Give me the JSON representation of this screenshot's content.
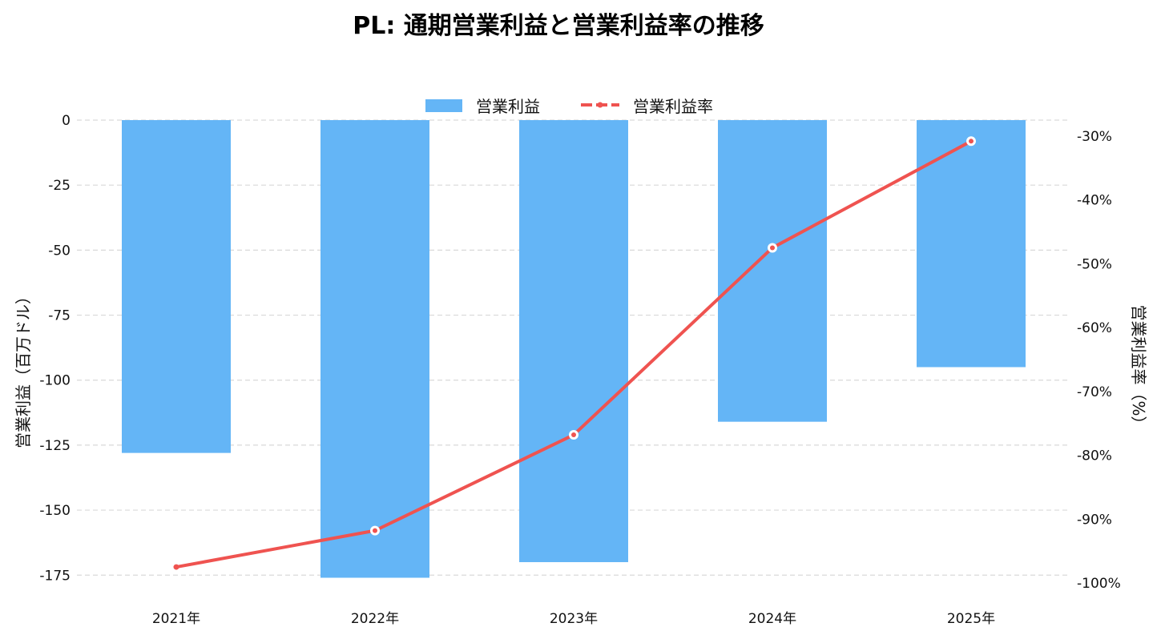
{
  "chart_data": {
    "type": "bar",
    "title": "PL: 通期営業利益と営業利益率の推移",
    "categories": [
      "2021年",
      "2022年",
      "2023年",
      "2024年",
      "2025年"
    ],
    "series": [
      {
        "name": "営業利益",
        "type": "bar",
        "axis": "left",
        "color": "#64b5f6",
        "values": [
          -128,
          -176,
          -170,
          -116,
          -95
        ]
      },
      {
        "name": "営業利益率",
        "type": "line",
        "axis": "right",
        "color": "#ef5350",
        "values": [
          -97.5,
          -91.8,
          -76.8,
          -47.5,
          -30.8
        ]
      }
    ],
    "y_left": {
      "label": "営業利益（百万ドル）",
      "lim": [
        -178,
        0
      ],
      "ticks": [
        0,
        -25,
        -50,
        -75,
        -100,
        -125,
        -150,
        -175
      ],
      "tick_labels": [
        "0",
        "-25",
        "-50",
        "-75",
        "-100",
        "-125",
        "-150",
        "-175"
      ]
    },
    "y_right": {
      "label": "営業利益率（%）",
      "lim": [
        -100,
        -27.5
      ],
      "ticks": [
        -30,
        -40,
        -50,
        -60,
        -70,
        -80,
        -90,
        -100
      ],
      "tick_labels": [
        "-30%",
        "-40%",
        "-50%",
        "-60%",
        "-70%",
        "-80%",
        "-90%",
        "-100%"
      ]
    },
    "grid": "horizontal dashed",
    "legend_position": "top-center"
  }
}
